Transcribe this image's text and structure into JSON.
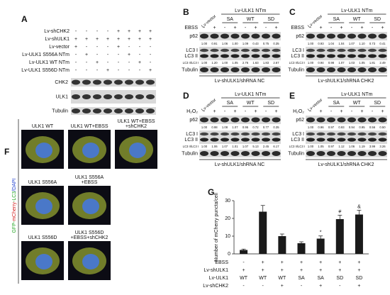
{
  "panel_a": {
    "label": "A",
    "rows": [
      {
        "name": "Lv-shCHK2",
        "signs": [
          "-",
          "-",
          "-",
          "-",
          "+",
          "+",
          "+",
          "+"
        ]
      },
      {
        "name": "Lv-shULK1",
        "signs": [
          "+",
          "+",
          "+",
          "+",
          "+",
          "+",
          "+",
          "+"
        ]
      },
      {
        "name": "Lv-vector",
        "signs": [
          "+",
          "-",
          "-",
          "-",
          "+",
          "-",
          "-",
          "-"
        ]
      },
      {
        "name": "Lv-ULK1 S556A NTm",
        "signs": [
          "-",
          "+",
          "-",
          "-",
          "-",
          "+",
          "-",
          "-"
        ]
      },
      {
        "name": "Lv-ULK1 WT NTm",
        "signs": [
          "-",
          "-",
          "+",
          "-",
          "-",
          "-",
          "+",
          "-"
        ]
      },
      {
        "name": "Lv-ULK1 S556D NTm",
        "signs": [
          "-",
          "-",
          "-",
          "+",
          "-",
          "-",
          "-",
          "+"
        ]
      }
    ],
    "blots": [
      "CHK2",
      "ULK1",
      "Tubulin"
    ]
  },
  "blot_panels": [
    {
      "label": "B",
      "vector": "Lv-vector",
      "header": "Lv-ULK1 NTm",
      "groups": [
        "SA",
        "WT",
        "SD"
      ],
      "treatment": "EBSS",
      "treatment_signs": [
        "-",
        "+",
        "-",
        "+",
        "-",
        "+",
        "-",
        "+"
      ],
      "p62_label": "p62",
      "p62_values": [
        "1.00",
        "0.91",
        "1.06",
        "1.00",
        "1.09",
        "0.43",
        "0.75",
        "0.35"
      ],
      "lc3_labels": [
        "LC3 I",
        "LC3 II"
      ],
      "ratio_label": "LC3 II/LC3 I",
      "lc3_ratio_values": [
        "1.00",
        "1.20",
        "1.00",
        "1.05",
        "2.76",
        "1.63",
        "1.83",
        "2.67"
      ],
      "loading": "Tubulin",
      "footer": "Lv-shULK1/shRNA NC"
    },
    {
      "label": "C",
      "vector": "Lv-vector",
      "header": "Lv-ULK1 NTm",
      "groups": [
        "SA",
        "WT",
        "SD"
      ],
      "treatment": "EBSS",
      "treatment_signs": [
        "-",
        "+",
        "-",
        "+",
        "-",
        "+",
        "-",
        "+"
      ],
      "p62_label": "p62",
      "p62_values": [
        "1.00",
        "0.93",
        "1.04",
        "1.04",
        "1.07",
        "1.10",
        "0.73",
        "0.41"
      ],
      "lc3_labels": [
        "LC3 I",
        "LC3 II"
      ],
      "ratio_label": "LC3 II/LC3 I",
      "lc3_ratio_values": [
        "1.00",
        "0.94",
        "0.98",
        "1.07",
        "1.03",
        "1.05",
        "1.81",
        "2.49"
      ],
      "loading": "Tubulin",
      "footer": "Lv-shULK1/shRNA CHK2"
    },
    {
      "label": "D",
      "vector": "Lv-vector",
      "header": "Lv-ULK1 NTm",
      "groups": [
        "SA",
        "WT",
        "SD"
      ],
      "treatment": "H₂O₂",
      "treatment_signs": [
        "-",
        "+",
        "-",
        "+",
        "-",
        "+",
        "-",
        "+"
      ],
      "p62_label": "p62",
      "p62_values": [
        "1.00",
        "0.98",
        "1.08",
        "1.07",
        "0.95",
        "0.72",
        "0.77",
        "0.35"
      ],
      "lc3_labels": [
        "LC3 I",
        "LC3 II"
      ],
      "ratio_label": "LC3 II/LC3 I",
      "lc3_ratio_values": [
        "1.00",
        "1.06",
        "1.07",
        "1.01",
        "1.07",
        "5.13",
        "2.45",
        "6.17"
      ],
      "loading": "Tubulin",
      "footer": "Lv-shULK1/shRNA NC"
    },
    {
      "label": "E",
      "vector": "Lv-vector",
      "header": "Lv-ULK1 NTm",
      "groups": [
        "SA",
        "WT",
        "SD"
      ],
      "treatment": "H₂O₂",
      "treatment_signs": [
        "-",
        "+",
        "-",
        "+",
        "-",
        "+",
        "-",
        "+"
      ],
      "p62_label": "p62",
      "p62_values": [
        "1.00",
        "0.96",
        "0.97",
        "0.93",
        "0.94",
        "0.95",
        "0.56",
        "0.50"
      ],
      "lc3_labels": [
        "LC3 I",
        "LC3 II"
      ],
      "ratio_label": "LC3 II/LC3 I",
      "lc3_ratio_values": [
        "1.00",
        "1.05",
        "0.97",
        "1.12",
        "1.06",
        "1.19",
        "3.99",
        "3.26"
      ],
      "loading": "Tubulin",
      "footer": "Lv-shULK1/shRNA CHK2"
    }
  ],
  "panel_f": {
    "label": "F",
    "stain_label": [
      {
        "text": "GFP-",
        "color": "#1fa31f"
      },
      {
        "text": "mCherry",
        "color": "#d42020"
      },
      {
        "text": "-LC3",
        "color": "#1fa31f"
      },
      {
        "text": "/DAPI",
        "color": "#2040d0"
      }
    ],
    "images": [
      {
        "caption": [
          "ULK1 WT"
        ]
      },
      {
        "caption": [
          "ULK1 WT+EBSS"
        ]
      },
      {
        "caption": [
          "ULK1 WT+EBSS",
          "+shCHK2"
        ]
      },
      {
        "caption": [
          "ULK1 S556A"
        ]
      },
      {
        "caption": [
          "ULK1 S556A",
          "+EBSS"
        ]
      },
      {
        "caption": [
          "ULK1 S556D"
        ]
      },
      {
        "caption": [
          "ULK1 S556D",
          "+EBSS+shCHK2"
        ]
      }
    ]
  },
  "chart_data": {
    "type": "bar",
    "label": "G",
    "y_label": "Number of mCherry puncta/cell",
    "values": [
      2.2,
      23.8,
      10,
      6,
      8.6,
      19.6,
      22.2
    ],
    "errors": [
      0.5,
      3.5,
      1.2,
      0.8,
      1.5,
      2.2,
      2.4
    ],
    "annotations": [
      null,
      null,
      null,
      null,
      "*",
      "#",
      "&"
    ],
    "color": "#1a1a1a",
    "ylim": [
      0,
      30
    ],
    "yticks": [
      0,
      10,
      20,
      30
    ],
    "conditions": [
      {
        "name": "EBSS",
        "values": [
          "-",
          "+",
          "+",
          "+",
          "+",
          "+",
          "+"
        ]
      },
      {
        "name": "Lv-shULK1",
        "values": [
          "+",
          "+",
          "+",
          "+",
          "+",
          "+",
          "+"
        ]
      },
      {
        "name": "Lv-ULK1",
        "values": [
          "WT",
          "WT",
          "WT",
          "SA",
          "SA",
          "SD",
          "SD"
        ]
      },
      {
        "name": "Lv-shCHK2",
        "values": [
          "-",
          "-",
          "+",
          "-",
          "+",
          "-",
          "+"
        ]
      }
    ]
  }
}
